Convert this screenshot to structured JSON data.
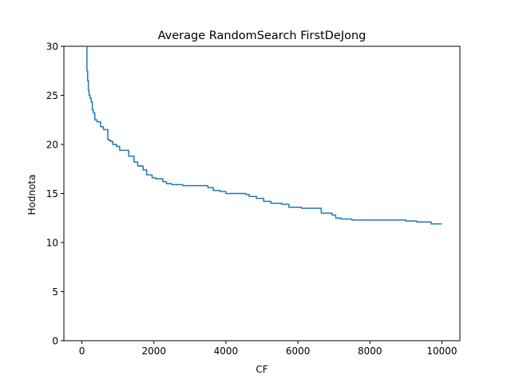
{
  "chart_data": {
    "type": "line",
    "title": "Average RandomSearch FirstDeJong",
    "xlabel": "CF",
    "ylabel": "Hodnota",
    "xlim": [
      -500,
      10500
    ],
    "ylim": [
      0,
      30
    ],
    "xticks": [
      0,
      2000,
      4000,
      6000,
      8000,
      10000
    ],
    "yticks": [
      0,
      5,
      10,
      15,
      20,
      25,
      30
    ],
    "grid": false,
    "series": [
      {
        "color": "#1f77b4",
        "step": true,
        "x": [
          100,
          140,
          160,
          180,
          200,
          230,
          260,
          290,
          320,
          360,
          420,
          520,
          600,
          720,
          760,
          800,
          860,
          960,
          1050,
          1300,
          1450,
          1550,
          1700,
          1800,
          1950,
          2050,
          2250,
          2350,
          2500,
          2800,
          2950,
          3500,
          3650,
          3850,
          4000,
          4200,
          4550,
          4650,
          4850,
          5050,
          5250,
          5550,
          5750,
          6100,
          6550,
          6650,
          6950,
          7050,
          7200,
          7500,
          8000,
          8500,
          8800,
          9000,
          9300,
          9700,
          10000
        ],
        "values": [
          30.0,
          27.5,
          26.5,
          25.5,
          25.0,
          24.7,
          24.3,
          23.5,
          23.2,
          22.5,
          22.3,
          21.8,
          21.5,
          20.5,
          20.4,
          20.3,
          20.0,
          19.8,
          19.4,
          18.8,
          18.2,
          17.8,
          17.4,
          16.9,
          16.6,
          16.5,
          16.2,
          16.0,
          15.9,
          15.8,
          15.8,
          15.6,
          15.3,
          15.2,
          15.0,
          15.0,
          14.9,
          14.7,
          14.5,
          14.2,
          14.0,
          13.9,
          13.6,
          13.5,
          13.5,
          13.0,
          12.8,
          12.5,
          12.4,
          12.3,
          12.3,
          12.3,
          12.3,
          12.2,
          12.1,
          11.9,
          11.9
        ]
      }
    ]
  }
}
